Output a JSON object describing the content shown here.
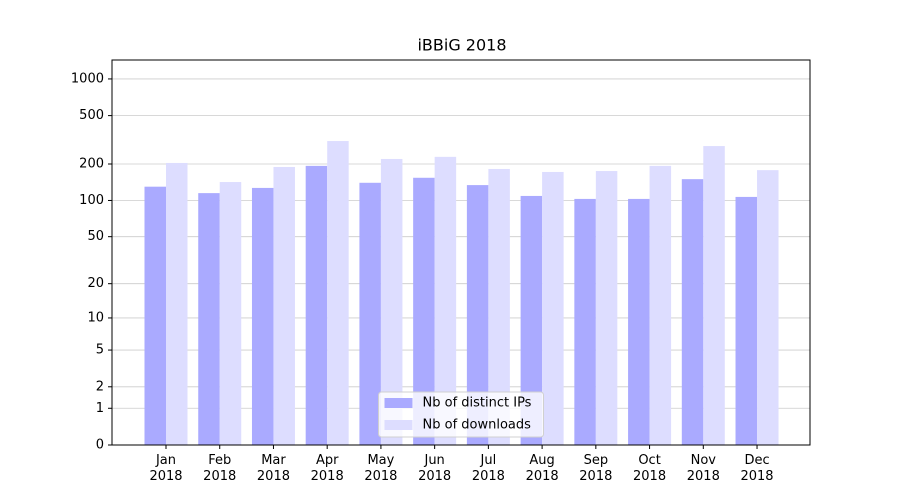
{
  "chart_data": {
    "type": "bar",
    "title": "iBBiG 2018",
    "categories": [
      "Jan 2018",
      "Feb 2018",
      "Mar 2018",
      "Apr 2018",
      "May 2018",
      "Jun 2018",
      "Jul 2018",
      "Aug 2018",
      "Sep 2018",
      "Oct 2018",
      "Nov 2018",
      "Dec 2018"
    ],
    "series": [
      {
        "name": "Nb of distinct IPs",
        "color": "#aaaaff",
        "values": [
          130,
          115,
          127,
          193,
          140,
          154,
          134,
          109,
          103,
          103,
          150,
          107
        ]
      },
      {
        "name": "Nb of downloads",
        "color": "#ddddff",
        "values": [
          204,
          142,
          189,
          309,
          220,
          229,
          182,
          172,
          175,
          193,
          281,
          178
        ]
      }
    ],
    "yscale": "log1p",
    "ylim": [
      0,
      1430
    ],
    "yticks": [
      0,
      1,
      2,
      5,
      10,
      20,
      50,
      100,
      200,
      500,
      1000
    ],
    "grid": true,
    "legend": "lower center"
  }
}
